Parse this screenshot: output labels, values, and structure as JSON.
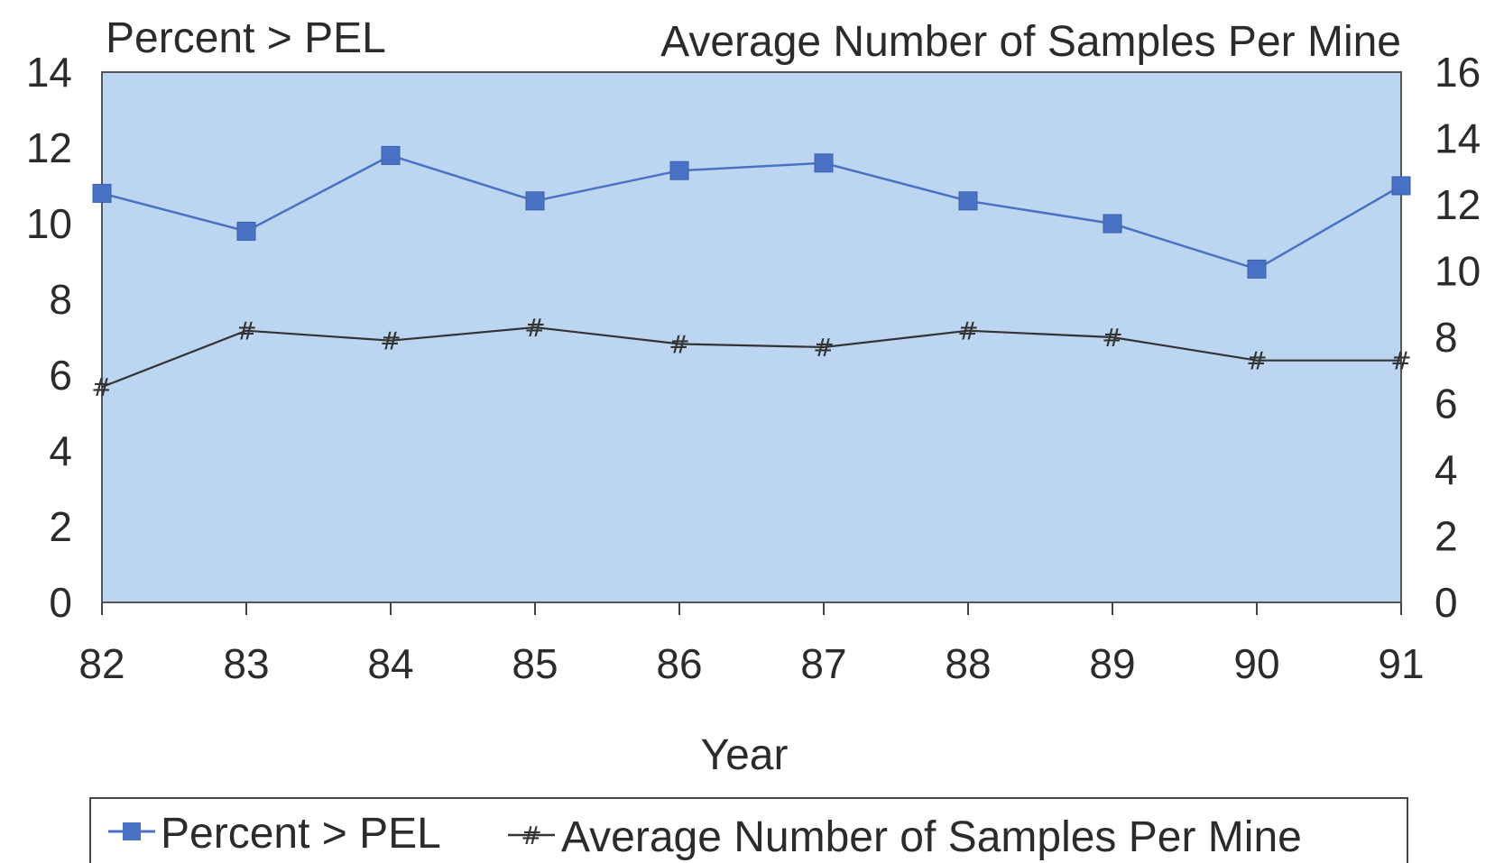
{
  "chart_data": {
    "type": "line",
    "categories": [
      "82",
      "83",
      "84",
      "85",
      "86",
      "87",
      "88",
      "89",
      "90",
      "91"
    ],
    "xlabel": "Year",
    "y_left": {
      "title": "Percent > PEL",
      "min": 0,
      "max": 14,
      "ticks": [
        "0",
        "2",
        "4",
        "6",
        "8",
        "10",
        "12",
        "14"
      ]
    },
    "y_right": {
      "title": "Average Number of Samples Per Mine",
      "min": 0,
      "max": 16,
      "ticks": [
        "0",
        "2",
        "4",
        "6",
        "8",
        "10",
        "12",
        "14",
        "16"
      ]
    },
    "series": [
      {
        "name": "Percent > PEL",
        "axis": "left",
        "marker": "square",
        "color": "#4a72c4",
        "values": [
          10.8,
          9.8,
          11.8,
          10.6,
          11.4,
          11.6,
          10.6,
          10.0,
          8.8,
          11.0
        ]
      },
      {
        "name": "Average Number of Samples Per Mine",
        "axis": "right",
        "marker": "hash",
        "color": "#333333",
        "values": [
          6.5,
          8.2,
          7.9,
          8.3,
          7.8,
          7.7,
          8.2,
          8.0,
          7.3,
          7.3
        ]
      }
    ],
    "plot_background": "#bcd5f0",
    "grid": false,
    "legend_position": "bottom"
  }
}
